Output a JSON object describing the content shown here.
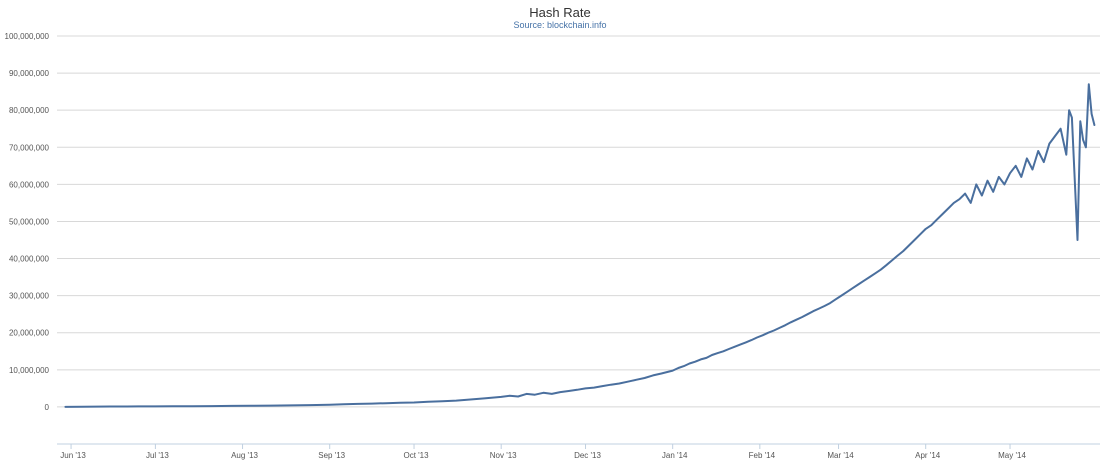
{
  "chart_data": {
    "type": "line",
    "title": "Hash Rate",
    "subtitle": "Source: blockchain.info",
    "xlabel": "",
    "ylabel": "",
    "ylim": [
      -10000000,
      100000000
    ],
    "grid": true,
    "legend": "none",
    "colors": {
      "line": "#4a6f9e",
      "grid": "#d8d8d8",
      "axis": "#c0d0e0",
      "title": "#333333",
      "subtitle": "#4572a7"
    },
    "x_ticks": [
      "Jun '13",
      "Jul '13",
      "Aug '13",
      "Sep '13",
      "Oct '13",
      "Nov '13",
      "Dec '13",
      "Jan '14",
      "Feb '14",
      "Mar '14",
      "Apr '14",
      "May '14"
    ],
    "x_range": [
      "2013-05-27",
      "2014-06-02"
    ],
    "y_ticks": [
      0,
      10000000,
      20000000,
      30000000,
      40000000,
      50000000,
      60000000,
      70000000,
      80000000,
      90000000,
      100000000
    ],
    "y_tick_labels": [
      "0",
      "10,000,000",
      "20,000,000",
      "30,000,000",
      "40,000,000",
      "50,000,000",
      "60,000,000",
      "70,000,000",
      "80,000,000",
      "90,000,000",
      "100,000,000"
    ],
    "series": [
      {
        "x": [
          "2013-05-30",
          "2013-06-05",
          "2013-06-10",
          "2013-06-15",
          "2013-06-20",
          "2013-06-25",
          "2013-07-01",
          "2013-07-07",
          "2013-07-14",
          "2013-07-21",
          "2013-07-28",
          "2013-08-04",
          "2013-08-11",
          "2013-08-18",
          "2013-08-25",
          "2013-09-01",
          "2013-09-06",
          "2013-09-11",
          "2013-09-16",
          "2013-09-21",
          "2013-09-26",
          "2013-10-01",
          "2013-10-06",
          "2013-10-11",
          "2013-10-16",
          "2013-10-21",
          "2013-10-26",
          "2013-11-01",
          "2013-11-04",
          "2013-11-07",
          "2013-11-10",
          "2013-11-13",
          "2013-11-16",
          "2013-11-19",
          "2013-11-22",
          "2013-11-25",
          "2013-11-28",
          "2013-12-01",
          "2013-12-04",
          "2013-12-07",
          "2013-12-10",
          "2013-12-13",
          "2013-12-16",
          "2013-12-19",
          "2013-12-22",
          "2013-12-25",
          "2013-12-28",
          "2014-01-01",
          "2014-01-03",
          "2014-01-05",
          "2014-01-07",
          "2014-01-09",
          "2014-01-11",
          "2014-01-13",
          "2014-01-15",
          "2014-01-17",
          "2014-01-19",
          "2014-01-21",
          "2014-01-23",
          "2014-01-25",
          "2014-01-27",
          "2014-01-29",
          "2014-01-31",
          "2014-02-02",
          "2014-02-04",
          "2014-02-06",
          "2014-02-08",
          "2014-02-10",
          "2014-02-12",
          "2014-02-14",
          "2014-02-16",
          "2014-02-18",
          "2014-02-20",
          "2014-02-22",
          "2014-02-24",
          "2014-02-26",
          "2014-02-28",
          "2014-03-02",
          "2014-03-04",
          "2014-03-06",
          "2014-03-08",
          "2014-03-10",
          "2014-03-12",
          "2014-03-14",
          "2014-03-16",
          "2014-03-18",
          "2014-03-20",
          "2014-03-22",
          "2014-03-24",
          "2014-03-26",
          "2014-03-28",
          "2014-03-30",
          "2014-04-01",
          "2014-04-03",
          "2014-04-05",
          "2014-04-07",
          "2014-04-09",
          "2014-04-11",
          "2014-04-13",
          "2014-04-15",
          "2014-04-17",
          "2014-04-19",
          "2014-04-21",
          "2014-04-23",
          "2014-04-25",
          "2014-04-27",
          "2014-04-29",
          "2014-05-01",
          "2014-05-03",
          "2014-05-05",
          "2014-05-07",
          "2014-05-09",
          "2014-05-11",
          "2014-05-13",
          "2014-05-15",
          "2014-05-17",
          "2014-05-19",
          "2014-05-21",
          "2014-05-22",
          "2014-05-23",
          "2014-05-25",
          "2014-05-26",
          "2014-05-27",
          "2014-05-28",
          "2014-05-29",
          "2014-05-30",
          "2014-05-31"
        ],
        "values": [
          0,
          50000,
          80000,
          100000,
          120000,
          140000,
          150000,
          170000,
          200000,
          230000,
          260000,
          300000,
          350000,
          420000,
          500000,
          600000,
          700000,
          800000,
          900000,
          1000000,
          1100000,
          1200000,
          1400000,
          1500000,
          1700000,
          2000000,
          2300000,
          2700000,
          3000000,
          2800000,
          3500000,
          3300000,
          3800000,
          3500000,
          4000000,
          4300000,
          4600000,
          5000000,
          5200000,
          5600000,
          6000000,
          6300000,
          6800000,
          7300000,
          7800000,
          8500000,
          9000000,
          9800000,
          10500000,
          11000000,
          11700000,
          12200000,
          12800000,
          13200000,
          14000000,
          14500000,
          15000000,
          15600000,
          16200000,
          16800000,
          17400000,
          18000000,
          18700000,
          19300000,
          20000000,
          20600000,
          21300000,
          22000000,
          22800000,
          23500000,
          24200000,
          25000000,
          25800000,
          26500000,
          27200000,
          28000000,
          29000000,
          30000000,
          31000000,
          32000000,
          33000000,
          34000000,
          35000000,
          36000000,
          37000000,
          38200000,
          39500000,
          40800000,
          42000000,
          43500000,
          45000000,
          46500000,
          48000000,
          49000000,
          50500000,
          52000000,
          53500000,
          55000000,
          56000000,
          57500000,
          55000000,
          60000000,
          57000000,
          61000000,
          58000000,
          62000000,
          60000000,
          63000000,
          65000000,
          62000000,
          67000000,
          64000000,
          69000000,
          66000000,
          71000000,
          73000000,
          75000000,
          68000000,
          80000000,
          78000000,
          45000000,
          77000000,
          72000000,
          70000000,
          87000000,
          79000000,
          76000000
        ]
      }
    ]
  }
}
